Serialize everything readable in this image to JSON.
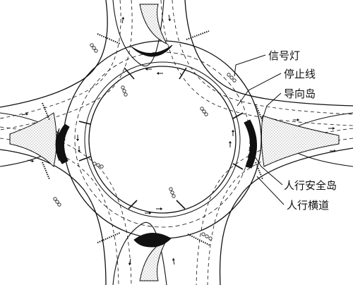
{
  "labels": {
    "signal_light": "信号灯",
    "stop_line": "停止线",
    "guide_island": "导向岛",
    "refuge_island": "人行安全岛",
    "crosswalk": "人行横道"
  }
}
